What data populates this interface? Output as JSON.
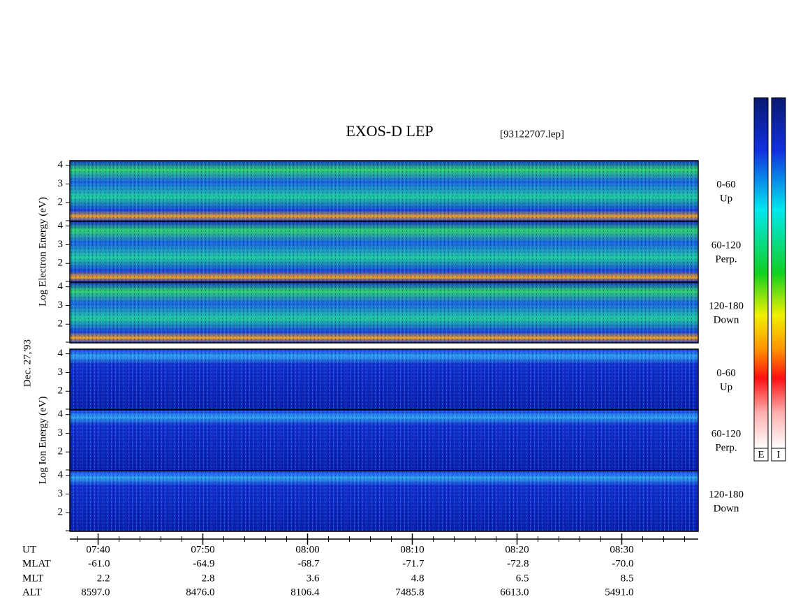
{
  "chart_data": {
    "type": "spectrogram",
    "title": "EXOS-D LEP",
    "file": "[93122707.lep]",
    "date": "Dec. 27,'93",
    "ylim": [
      1,
      4.25
    ],
    "yticks": [
      2,
      3,
      4
    ],
    "xlim": [
      457.3,
      517.3
    ],
    "xticks": [
      {
        "value": 460,
        "label": "07:40"
      },
      {
        "value": 470,
        "label": "07:50"
      },
      {
        "value": 480,
        "label": "08:00"
      },
      {
        "value": 490,
        "label": "08:10"
      },
      {
        "value": 500,
        "label": "08:20"
      },
      {
        "value": 510,
        "label": "08:30"
      }
    ],
    "x_label": "UT",
    "ephemeris": [
      {
        "name": "MLAT",
        "values": [
          "-61.0",
          "-64.9",
          "-68.7",
          "-71.7",
          "-72.8",
          "-70.0"
        ]
      },
      {
        "name": "MLT",
        "values": [
          "2.2",
          "2.8",
          "3.6",
          "4.8",
          "6.5",
          "8.5"
        ]
      },
      {
        "name": "ALT",
        "values": [
          "8597.0",
          "8476.0",
          "8106.4",
          "7485.8",
          "6613.0",
          "5491.0"
        ]
      }
    ],
    "groups": [
      {
        "y_label": "Log Electron Energy (eV)",
        "panels": [
          {
            "angle": "0-60",
            "direction": "Up"
          },
          {
            "angle": "60-120",
            "direction": "Perp."
          },
          {
            "angle": "120-180",
            "direction": "Down"
          }
        ]
      },
      {
        "y_label": "Log Ion Energy (eV)",
        "panels": [
          {
            "angle": "0-60",
            "direction": "Up"
          },
          {
            "angle": "60-120",
            "direction": "Perp."
          },
          {
            "angle": "120-180",
            "direction": "Down"
          }
        ]
      }
    ],
    "colorbar_labels": [
      "E",
      "I"
    ]
  }
}
